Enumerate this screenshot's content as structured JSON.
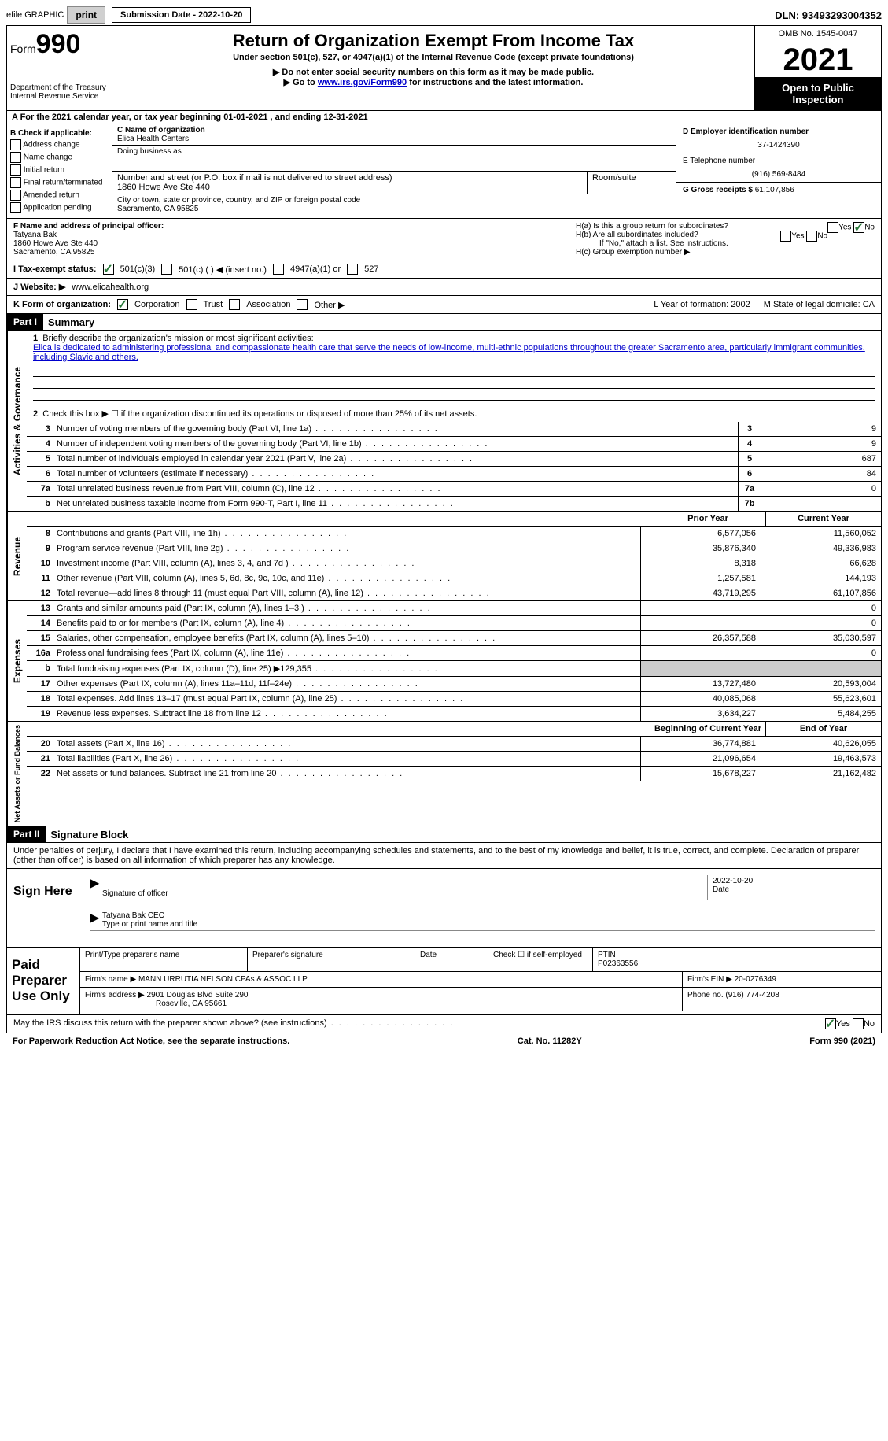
{
  "topbar": {
    "efile_label": "efile GRAPHIC",
    "print_btn": "print",
    "submission_label": "Submission Date - 2022-10-20",
    "dln": "DLN: 93493293004352"
  },
  "header": {
    "form_prefix": "Form",
    "form_number": "990",
    "dept": "Department of the Treasury Internal Revenue Service",
    "title": "Return of Organization Exempt From Income Tax",
    "subtitle": "Under section 501(c), 527, or 4947(a)(1) of the Internal Revenue Code (except private foundations)",
    "note1": "▶ Do not enter social security numbers on this form as it may be made public.",
    "note2_prefix": "▶ Go to ",
    "note2_link": "www.irs.gov/Form990",
    "note2_suffix": " for instructions and the latest information.",
    "omb": "OMB No. 1545-0047",
    "year": "2021",
    "inspection": "Open to Public Inspection"
  },
  "rowA": "A For the 2021 calendar year, or tax year beginning 01-01-2021   , and ending 12-31-2021",
  "colB": {
    "title": "B Check if applicable:",
    "items": [
      "Address change",
      "Name change",
      "Initial return",
      "Final return/terminated",
      "Amended return",
      "Application pending"
    ]
  },
  "colC": {
    "name_label": "C Name of organization",
    "name": "Elica Health Centers",
    "dba_label": "Doing business as",
    "addr_label": "Number and street (or P.O. box if mail is not delivered to street address)",
    "room_label": "Room/suite",
    "addr": "1860 Howe Ave Ste 440",
    "city_label": "City or town, state or province, country, and ZIP or foreign postal code",
    "city": "Sacramento, CA  95825"
  },
  "colD": {
    "ein_label": "D Employer identification number",
    "ein": "37-1424390",
    "phone_label": "E Telephone number",
    "phone": "(916) 569-8484",
    "gross_label": "G Gross receipts $",
    "gross": "61,107,856"
  },
  "rowF": {
    "label": "F Name and address of principal officer:",
    "name": "Tatyana Bak",
    "addr1": "1860 Howe Ave Ste 440",
    "addr2": "Sacramento, CA  95825",
    "ha": "H(a)  Is this a group return for subordinates?",
    "hb": "H(b)  Are all subordinates included?",
    "hb_note": "If \"No,\" attach a list. See instructions.",
    "hc": "H(c)  Group exemption number ▶"
  },
  "rowI": {
    "label": "I   Tax-exempt status:",
    "opt1": "501(c)(3)",
    "opt2": "501(c) (  ) ◀ (insert no.)",
    "opt3": "4947(a)(1) or",
    "opt4": "527"
  },
  "rowJ": {
    "label": "J  Website: ▶",
    "value": "www.elicahealth.org"
  },
  "rowK": {
    "label": "K Form of organization:",
    "opts": [
      "Corporation",
      "Trust",
      "Association",
      "Other ▶"
    ],
    "L": "L Year of formation: 2002",
    "M": "M State of legal domicile: CA"
  },
  "part1": {
    "header": "Part I",
    "title": "Summary",
    "mission_label": "Briefly describe the organization's mission or most significant activities:",
    "mission": "Elica is dedicated to administering professional and compassionate health care that serve the needs of low-income, multi-ethnic populations throughout the greater Sacramento area, particularly immigrant communities, including Slavic and others.",
    "line2": "Check this box ▶ ☐  if the organization discontinued its operations or disposed of more than 25% of its net assets.",
    "prior_year": "Prior Year",
    "current_year": "Current Year",
    "beg_year": "Beginning of Current Year",
    "end_year": "End of Year"
  },
  "sections": {
    "activities": {
      "label": "Activities & Governance",
      "lines": [
        {
          "num": "3",
          "desc": "Number of voting members of the governing body (Part VI, line 1a)",
          "box": "3",
          "val": "9"
        },
        {
          "num": "4",
          "desc": "Number of independent voting members of the governing body (Part VI, line 1b)",
          "box": "4",
          "val": "9"
        },
        {
          "num": "5",
          "desc": "Total number of individuals employed in calendar year 2021 (Part V, line 2a)",
          "box": "5",
          "val": "687"
        },
        {
          "num": "6",
          "desc": "Total number of volunteers (estimate if necessary)",
          "box": "6",
          "val": "84"
        },
        {
          "num": "7a",
          "desc": "Total unrelated business revenue from Part VIII, column (C), line 12",
          "box": "7a",
          "val": "0"
        },
        {
          "num": "b",
          "desc": "Net unrelated business taxable income from Form 990-T, Part I, line 11",
          "box": "7b",
          "val": ""
        }
      ]
    },
    "revenue": {
      "label": "Revenue",
      "lines": [
        {
          "num": "8",
          "desc": "Contributions and grants (Part VIII, line 1h)",
          "prior": "6,577,056",
          "curr": "11,560,052"
        },
        {
          "num": "9",
          "desc": "Program service revenue (Part VIII, line 2g)",
          "prior": "35,876,340",
          "curr": "49,336,983"
        },
        {
          "num": "10",
          "desc": "Investment income (Part VIII, column (A), lines 3, 4, and 7d )",
          "prior": "8,318",
          "curr": "66,628"
        },
        {
          "num": "11",
          "desc": "Other revenue (Part VIII, column (A), lines 5, 6d, 8c, 9c, 10c, and 11e)",
          "prior": "1,257,581",
          "curr": "144,193"
        },
        {
          "num": "12",
          "desc": "Total revenue—add lines 8 through 11 (must equal Part VIII, column (A), line 12)",
          "prior": "43,719,295",
          "curr": "61,107,856"
        }
      ]
    },
    "expenses": {
      "label": "Expenses",
      "lines": [
        {
          "num": "13",
          "desc": "Grants and similar amounts paid (Part IX, column (A), lines 1–3 )",
          "prior": "",
          "curr": "0"
        },
        {
          "num": "14",
          "desc": "Benefits paid to or for members (Part IX, column (A), line 4)",
          "prior": "",
          "curr": "0"
        },
        {
          "num": "15",
          "desc": "Salaries, other compensation, employee benefits (Part IX, column (A), lines 5–10)",
          "prior": "26,357,588",
          "curr": "35,030,597"
        },
        {
          "num": "16a",
          "desc": "Professional fundraising fees (Part IX, column (A), line 11e)",
          "prior": "",
          "curr": "0"
        },
        {
          "num": "b",
          "desc": "Total fundraising expenses (Part IX, column (D), line 25) ▶129,355",
          "prior": "grey",
          "curr": "grey"
        },
        {
          "num": "17",
          "desc": "Other expenses (Part IX, column (A), lines 11a–11d, 11f–24e)",
          "prior": "13,727,480",
          "curr": "20,593,004"
        },
        {
          "num": "18",
          "desc": "Total expenses. Add lines 13–17 (must equal Part IX, column (A), line 25)",
          "prior": "40,085,068",
          "curr": "55,623,601"
        },
        {
          "num": "19",
          "desc": "Revenue less expenses. Subtract line 18 from line 12",
          "prior": "3,634,227",
          "curr": "5,484,255"
        }
      ]
    },
    "netassets": {
      "label": "Net Assets or Fund Balances",
      "lines": [
        {
          "num": "20",
          "desc": "Total assets (Part X, line 16)",
          "prior": "36,774,881",
          "curr": "40,626,055"
        },
        {
          "num": "21",
          "desc": "Total liabilities (Part X, line 26)",
          "prior": "21,096,654",
          "curr": "19,463,573"
        },
        {
          "num": "22",
          "desc": "Net assets or fund balances. Subtract line 21 from line 20",
          "prior": "15,678,227",
          "curr": "21,162,482"
        }
      ]
    }
  },
  "part2": {
    "header": "Part II",
    "title": "Signature Block",
    "declaration": "Under penalties of perjury, I declare that I have examined this return, including accompanying schedules and statements, and to the best of my knowledge and belief, it is true, correct, and complete. Declaration of preparer (other than officer) is based on all information of which preparer has any knowledge."
  },
  "sign": {
    "label": "Sign Here",
    "sig_label": "Signature of officer",
    "date": "2022-10-20",
    "date_label": "Date",
    "name": "Tatyana Bak CEO",
    "name_label": "Type or print name and title"
  },
  "preparer": {
    "label": "Paid Preparer Use Only",
    "h1": "Print/Type preparer's name",
    "h2": "Preparer's signature",
    "h3": "Date",
    "h4": "Check ☐ if self-employed",
    "h5_label": "PTIN",
    "h5": "P02363556",
    "firm_label": "Firm's name    ▶",
    "firm": "MANN URRUTIA NELSON CPAs & ASSOC LLP",
    "ein_label": "Firm's EIN ▶",
    "ein": "20-0276349",
    "addr_label": "Firm's address ▶",
    "addr1": "2901 Douglas Blvd Suite 290",
    "addr2": "Roseville, CA  95661",
    "phone_label": "Phone no.",
    "phone": "(916) 774-4208"
  },
  "footer": {
    "discuss": "May the IRS discuss this return with the preparer shown above? (see instructions)",
    "paperwork": "For Paperwork Reduction Act Notice, see the separate instructions.",
    "cat": "Cat. No. 11282Y",
    "form": "Form 990 (2021)"
  }
}
